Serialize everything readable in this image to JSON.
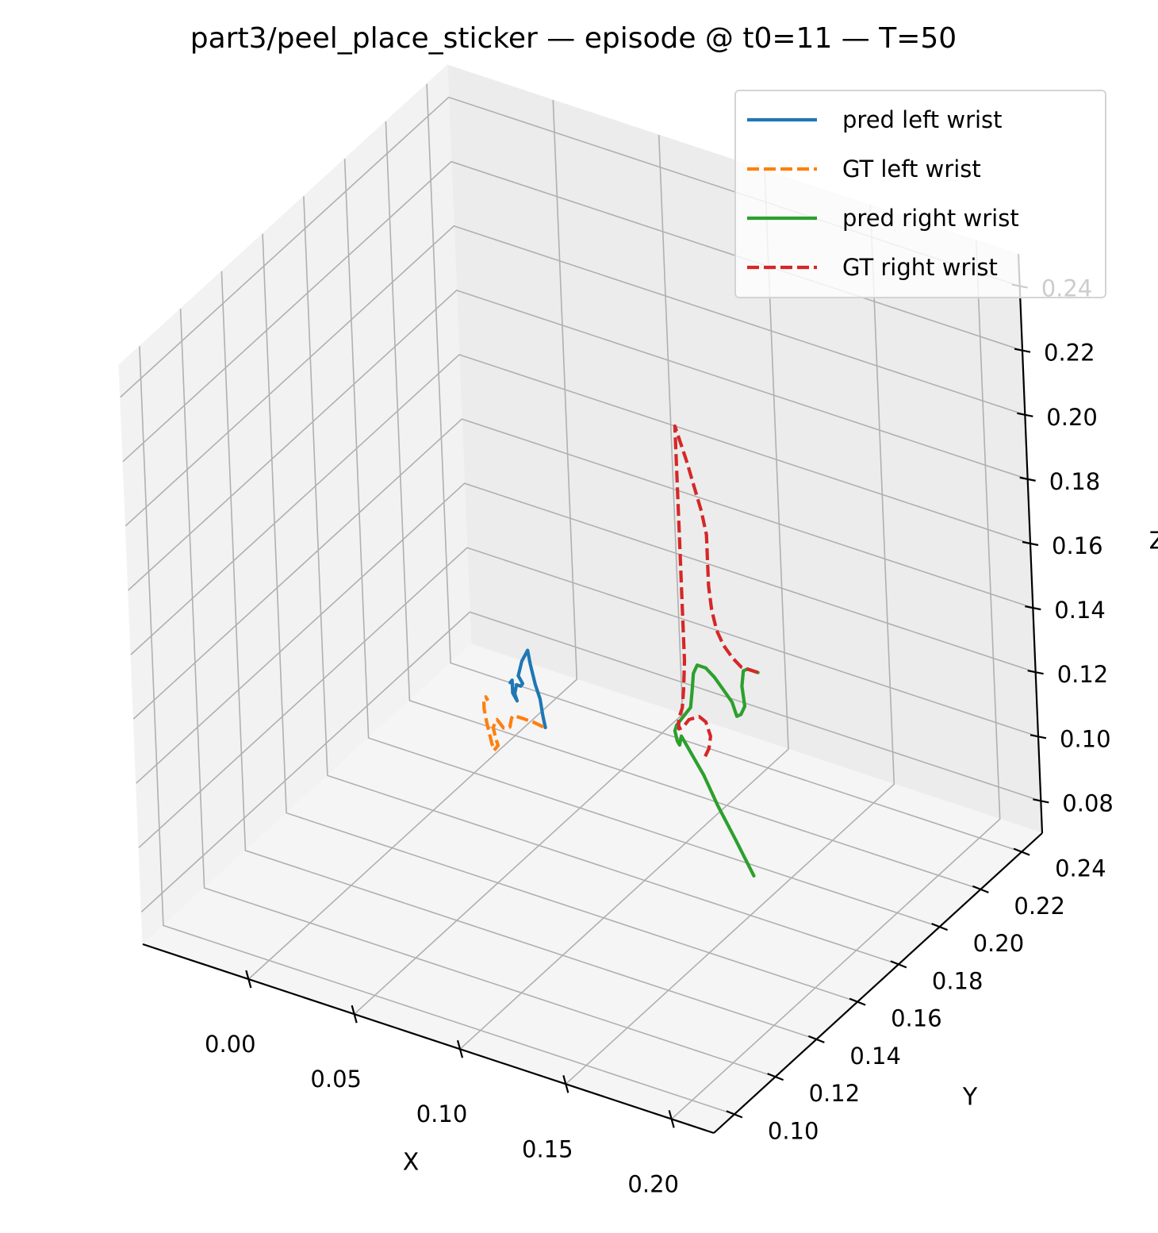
{
  "chart_data": {
    "type": "line",
    "projection": "3d",
    "title": "part3/peel_place_sticker — episode @ t0=11 — T=50",
    "xlabel": "X",
    "ylabel": "Y",
    "zlabel": "Z",
    "xlim": [
      -0.05,
      0.22
    ],
    "ylim": [
      0.09,
      0.25
    ],
    "zlim": [
      0.07,
      0.25
    ],
    "x_ticks": [
      "0.00",
      "0.05",
      "0.10",
      "0.15",
      "0.20"
    ],
    "y_ticks": [
      "0.10",
      "0.12",
      "0.14",
      "0.16",
      "0.18",
      "0.20",
      "0.22",
      "0.24"
    ],
    "z_ticks": [
      "0.08",
      "0.10",
      "0.12",
      "0.14",
      "0.16",
      "0.18",
      "0.20",
      "0.22",
      "0.24"
    ],
    "grid": true,
    "legend_position": "top-right",
    "series": [
      {
        "name": "pred left wrist",
        "color": "#1f77b4",
        "style": "solid",
        "points": [
          [
            0.036,
            0.199,
            0.0925
          ],
          [
            0.035,
            0.199,
            0.096
          ],
          [
            0.034,
            0.199,
            0.101
          ],
          [
            0.032,
            0.199,
            0.105
          ],
          [
            0.03,
            0.199,
            0.111
          ],
          [
            0.029,
            0.199,
            0.115
          ],
          [
            0.026,
            0.199,
            0.111
          ],
          [
            0.024,
            0.199,
            0.106
          ],
          [
            0.026,
            0.199,
            0.104
          ],
          [
            0.025,
            0.199,
            0.103
          ],
          [
            0.023,
            0.199,
            0.103
          ],
          [
            0.022,
            0.199,
            0.1
          ],
          [
            0.023,
            0.199,
            0.098
          ],
          [
            0.021,
            0.199,
            0.1
          ],
          [
            0.021,
            0.199,
            0.104
          ],
          [
            0.02,
            0.199,
            0.103
          ]
        ]
      },
      {
        "name": "GT left wrist",
        "color": "#ff7f0e",
        "style": "dashed",
        "points": [
          [
            0.035,
            0.199,
            0.0925
          ],
          [
            0.03,
            0.199,
            0.093
          ],
          [
            0.025,
            0.199,
            0.093
          ],
          [
            0.021,
            0.199,
            0.093
          ],
          [
            0.02,
            0.199,
            0.092
          ],
          [
            0.019,
            0.199,
            0.089
          ],
          [
            0.016,
            0.199,
            0.088
          ],
          [
            0.013,
            0.199,
            0.09
          ],
          [
            0.012,
            0.199,
            0.089
          ],
          [
            0.011,
            0.199,
            0.087
          ],
          [
            0.012,
            0.199,
            0.084
          ],
          [
            0.013,
            0.199,
            0.082
          ],
          [
            0.011,
            0.199,
            0.08
          ],
          [
            0.01,
            0.199,
            0.082
          ],
          [
            0.009,
            0.199,
            0.085
          ],
          [
            0.008,
            0.199,
            0.088
          ],
          [
            0.007,
            0.199,
            0.092
          ],
          [
            0.007,
            0.199,
            0.095
          ],
          [
            0.008,
            0.199,
            0.096
          ],
          [
            0.009,
            0.199,
            0.095
          ]
        ]
      },
      {
        "name": "pred right wrist",
        "color": "#2ca02c",
        "style": "solid",
        "points": [
          [
            0.133,
            0.199,
            0.0675
          ],
          [
            0.125,
            0.199,
            0.077
          ],
          [
            0.117,
            0.199,
            0.086
          ],
          [
            0.111,
            0.199,
            0.094
          ],
          [
            0.107,
            0.199,
            0.098
          ],
          [
            0.103,
            0.199,
            0.102
          ],
          [
            0.101,
            0.199,
            0.104
          ],
          [
            0.1,
            0.199,
            0.101
          ],
          [
            0.099,
            0.199,
            0.102
          ],
          [
            0.098,
            0.199,
            0.105
          ],
          [
            0.099,
            0.199,
            0.107
          ],
          [
            0.101,
            0.199,
            0.109
          ],
          [
            0.103,
            0.199,
            0.111
          ],
          [
            0.106,
            0.199,
            0.114
          ],
          [
            0.107,
            0.199,
            0.119
          ],
          [
            0.108,
            0.199,
            0.125
          ],
          [
            0.11,
            0.199,
            0.128
          ],
          [
            0.114,
            0.199,
            0.128
          ],
          [
            0.118,
            0.199,
            0.126
          ],
          [
            0.122,
            0.199,
            0.123
          ],
          [
            0.126,
            0.199,
            0.12
          ],
          [
            0.128,
            0.199,
            0.116
          ],
          [
            0.13,
            0.199,
            0.117
          ],
          [
            0.132,
            0.199,
            0.12
          ],
          [
            0.131,
            0.199,
            0.126
          ],
          [
            0.132,
            0.199,
            0.131
          ],
          [
            0.134,
            0.199,
            0.132
          ],
          [
            0.137,
            0.199,
            0.132
          ],
          [
            0.139,
            0.199,
            0.132
          ]
        ]
      },
      {
        "name": "GT right wrist",
        "color": "#d62728",
        "style": "dashed",
        "points": [
          [
            0.139,
            0.199,
            0.132
          ],
          [
            0.136,
            0.199,
            0.132
          ],
          [
            0.134,
            0.199,
            0.132
          ],
          [
            0.131,
            0.199,
            0.132
          ],
          [
            0.127,
            0.199,
            0.134
          ],
          [
            0.123,
            0.199,
            0.137
          ],
          [
            0.12,
            0.199,
            0.141
          ],
          [
            0.118,
            0.199,
            0.147
          ],
          [
            0.117,
            0.199,
            0.154
          ],
          [
            0.117,
            0.199,
            0.162
          ],
          [
            0.117,
            0.199,
            0.17
          ],
          [
            0.115,
            0.199,
            0.177
          ],
          [
            0.112,
            0.199,
            0.184
          ],
          [
            0.109,
            0.199,
            0.191
          ],
          [
            0.106,
            0.199,
            0.197
          ],
          [
            0.104,
            0.199,
            0.201
          ],
          [
            0.104,
            0.199,
            0.199
          ],
          [
            0.104,
            0.199,
            0.19
          ],
          [
            0.104,
            0.199,
            0.178
          ],
          [
            0.104,
            0.199,
            0.165
          ],
          [
            0.104,
            0.199,
            0.152
          ],
          [
            0.104,
            0.199,
            0.14
          ],
          [
            0.104,
            0.199,
            0.128
          ],
          [
            0.103,
            0.199,
            0.119
          ],
          [
            0.102,
            0.199,
            0.113
          ],
          [
            0.1,
            0.199,
            0.109
          ],
          [
            0.1,
            0.199,
            0.106
          ],
          [
            0.102,
            0.199,
            0.107
          ],
          [
            0.105,
            0.199,
            0.11
          ],
          [
            0.11,
            0.199,
            0.112
          ],
          [
            0.113,
            0.199,
            0.111
          ],
          [
            0.115,
            0.199,
            0.107
          ],
          [
            0.114,
            0.199,
            0.103
          ],
          [
            0.112,
            0.199,
            0.1
          ]
        ]
      }
    ]
  }
}
